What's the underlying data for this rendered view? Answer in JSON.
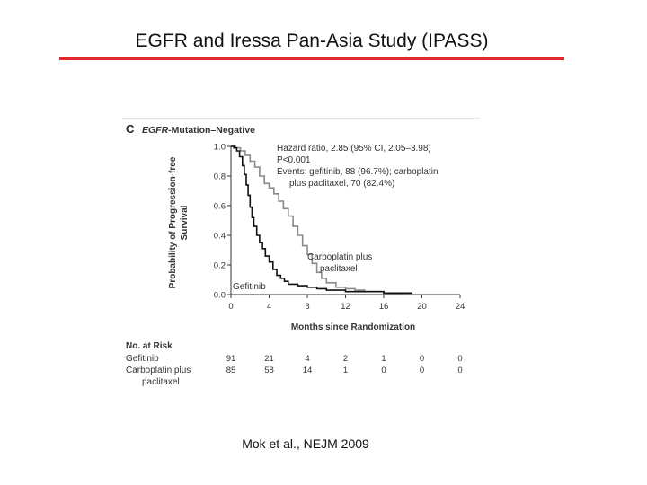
{
  "slide": {
    "title": "EGFR and Iressa Pan-Asia Study (IPASS)",
    "citation": "Mok et al., NEJM 2009"
  },
  "chart_data": {
    "type": "line",
    "panel_letter": "C",
    "panel_title_italic": "EGFR",
    "panel_title_rest": "-Mutation–Negative",
    "xlabel": "Months since Randomization",
    "ylabel_line1": "Probability of Progression-free",
    "ylabel_line2": "Survival",
    "xlim": [
      0,
      24
    ],
    "ylim": [
      0,
      1.0
    ],
    "x_ticks": [
      0,
      4,
      8,
      12,
      16,
      20,
      24
    ],
    "y_ticks": [
      0.0,
      0.2,
      0.4,
      0.6,
      0.8,
      1.0
    ],
    "y_tick_labels": [
      "0.0",
      "0.2",
      "0.4",
      "0.6",
      "0.8",
      "1.0"
    ],
    "annotation_lines": [
      "Hazard ratio, 2.85 (95% CI, 2.05–3.98)",
      "P<0.001",
      "Events: gefitinib, 88 (96.7%); carboplatin",
      "plus paclitaxel, 70 (82.4%)"
    ],
    "series": [
      {
        "name": "Gefitinib",
        "color": "#111111",
        "points": [
          [
            0,
            1.0
          ],
          [
            0.3,
            0.99
          ],
          [
            0.6,
            0.97
          ],
          [
            0.9,
            0.93
          ],
          [
            1.2,
            0.87
          ],
          [
            1.4,
            0.81
          ],
          [
            1.6,
            0.74
          ],
          [
            1.8,
            0.67
          ],
          [
            2.0,
            0.59
          ],
          [
            2.2,
            0.52
          ],
          [
            2.4,
            0.46
          ],
          [
            2.7,
            0.4
          ],
          [
            3.0,
            0.35
          ],
          [
            3.3,
            0.31
          ],
          [
            3.6,
            0.26
          ],
          [
            4.0,
            0.22
          ],
          [
            4.4,
            0.17
          ],
          [
            4.8,
            0.13
          ],
          [
            5.2,
            0.11
          ],
          [
            5.6,
            0.09
          ],
          [
            6.0,
            0.07
          ],
          [
            7.0,
            0.06
          ],
          [
            8.0,
            0.05
          ],
          [
            9.0,
            0.04
          ],
          [
            10.0,
            0.03
          ],
          [
            12.0,
            0.02
          ],
          [
            14.0,
            0.02
          ],
          [
            16.0,
            0.01
          ],
          [
            18.0,
            0.01
          ],
          [
            19.0,
            0.01
          ]
        ]
      },
      {
        "name": "Carboplatin plus paclitaxel",
        "color": "#8a8a8a",
        "points": [
          [
            0,
            1.0
          ],
          [
            0.5,
            0.99
          ],
          [
            1.0,
            0.97
          ],
          [
            1.5,
            0.94
          ],
          [
            2.0,
            0.9
          ],
          [
            2.5,
            0.86
          ],
          [
            3.0,
            0.8
          ],
          [
            3.5,
            0.75
          ],
          [
            4.0,
            0.72
          ],
          [
            4.5,
            0.68
          ],
          [
            5.0,
            0.63
          ],
          [
            5.5,
            0.58
          ],
          [
            6.0,
            0.53
          ],
          [
            6.5,
            0.46
          ],
          [
            7.0,
            0.4
          ],
          [
            7.5,
            0.33
          ],
          [
            8.0,
            0.27
          ],
          [
            8.5,
            0.21
          ],
          [
            9.0,
            0.15
          ],
          [
            9.5,
            0.11
          ],
          [
            10.0,
            0.08
          ],
          [
            11.0,
            0.05
          ],
          [
            12.0,
            0.04
          ],
          [
            13.0,
            0.03
          ],
          [
            14.0,
            0.02
          ],
          [
            16.0,
            0.01
          ],
          [
            18.0,
            0.01
          ]
        ]
      }
    ],
    "series_labels": {
      "gefitinib": "Gefitinib",
      "carbo_line1": "Carboplatin plus",
      "carbo_line2": "paclitaxel"
    },
    "risk_table": {
      "header": "No. at Risk",
      "rows": [
        {
          "label": "Gefitinib",
          "label2": "",
          "values": [
            "91",
            "21",
            "4",
            "2",
            "1",
            "0",
            "0"
          ]
        },
        {
          "label": "Carboplatin plus",
          "label2": "paclitaxel",
          "values": [
            "85",
            "58",
            "14",
            "1",
            "0",
            "0",
            "0"
          ]
        }
      ]
    }
  }
}
